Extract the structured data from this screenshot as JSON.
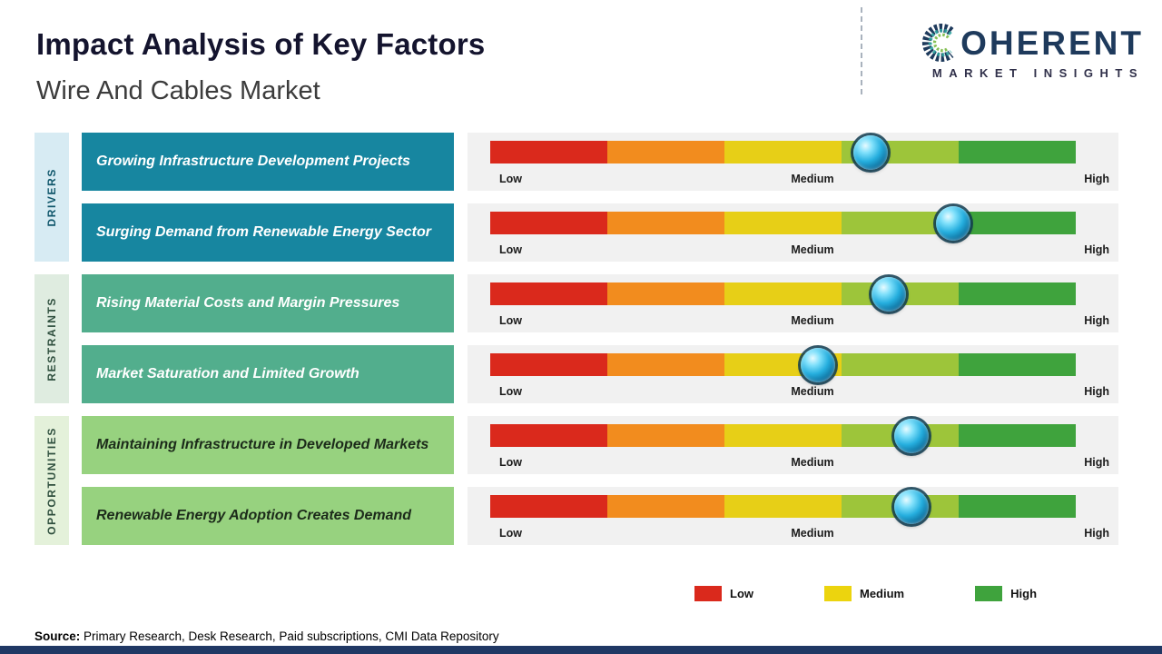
{
  "header": {
    "title": "Impact Analysis of Key Factors",
    "subtitle": "Wire And Cables Market"
  },
  "logo": {
    "brand": "COHERENT",
    "tagline": "MARKET INSIGHTS",
    "brand_color": "#1e3a5c"
  },
  "scale": {
    "labels": {
      "low": "Low",
      "medium": "Medium",
      "high": "High"
    },
    "segment_colors": [
      "#da291c",
      "#f28c1e",
      "#e7cf17",
      "#9dc53a",
      "#3fa33d"
    ]
  },
  "categories": [
    {
      "label": "DRIVERS",
      "strip_color": "#d7ebf3",
      "label_color": "#0f566b",
      "box_color": "#1786a0",
      "box_text_color": "#ffffff"
    },
    {
      "label": "RESTRAINTS",
      "strip_color": "#dfece0",
      "label_color": "#2f4f3e",
      "box_color": "#52ae8d",
      "box_text_color": "#ffffff"
    },
    {
      "label": "OPPORTUNITIES",
      "strip_color": "#e4f1da",
      "label_color": "#2f4f3e",
      "box_color": "#97d27f",
      "box_text_color": "#1c2b1a"
    }
  ],
  "rows": [
    {
      "category": 0,
      "label": "Growing Infrastructure Development Projects",
      "marker_pos": 0.65
    },
    {
      "category": 0,
      "label": "Surging Demand from Renewable Energy Sector",
      "marker_pos": 0.79
    },
    {
      "category": 1,
      "label": "Rising Material Costs and Margin Pressures",
      "marker_pos": 0.68
    },
    {
      "category": 1,
      "label": "Market Saturation and Limited Growth",
      "marker_pos": 0.56
    },
    {
      "category": 2,
      "label": "Maintaining Infrastructure in Developed Markets",
      "marker_pos": 0.72
    },
    {
      "category": 2,
      "label": "Renewable Energy Adoption Creates Demand",
      "marker_pos": 0.72
    }
  ],
  "legend": [
    {
      "label": "Low",
      "color": "#da291c"
    },
    {
      "label": "Medium",
      "color": "#ecd40e"
    },
    {
      "label": "High",
      "color": "#3fa33d"
    }
  ],
  "source": {
    "label": "Source:",
    "text": " Primary Research, Desk Research, Paid subscriptions, CMI Data Repository"
  },
  "footer_color": "#203864",
  "chart_data": {
    "type": "scatter",
    "title": "Impact Analysis of Key Factors",
    "subtitle": "Wire And Cables Market",
    "x_scale": {
      "range": [
        0,
        1
      ],
      "tick_labels": [
        "Low",
        "Medium",
        "High"
      ]
    },
    "legend": [
      "Low",
      "Medium",
      "High"
    ],
    "series": [
      {
        "category": "Drivers",
        "factor": "Growing Infrastructure Development Projects",
        "impact": 0.65
      },
      {
        "category": "Drivers",
        "factor": "Surging Demand from Renewable Energy Sector",
        "impact": 0.79
      },
      {
        "category": "Restraints",
        "factor": "Rising Material Costs and Margin Pressures",
        "impact": 0.68
      },
      {
        "category": "Restraints",
        "factor": "Market Saturation and Limited Growth",
        "impact": 0.56
      },
      {
        "category": "Opportunities",
        "factor": "Maintaining Infrastructure in Developed Markets",
        "impact": 0.72
      },
      {
        "category": "Opportunities",
        "factor": "Renewable Energy Adoption Creates Demand",
        "impact": 0.72
      }
    ]
  }
}
